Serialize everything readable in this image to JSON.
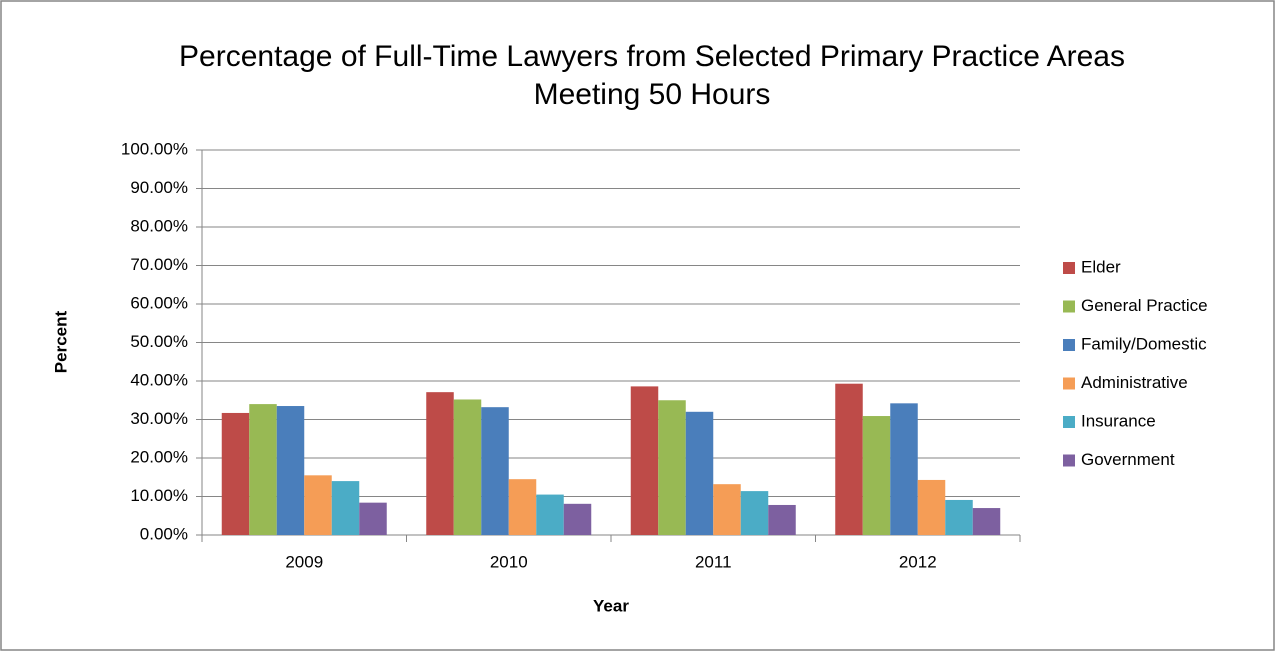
{
  "chart_data": {
    "type": "bar",
    "title": "Percentage of Full-Time Lawyers from Selected Primary Practice Areas Meeting 50 Hours",
    "x_label": "Year",
    "y_label": "Percent",
    "categories": [
      "2009",
      "2010",
      "2011",
      "2012"
    ],
    "series": [
      {
        "name": "Elder",
        "color": "#be4b48",
        "values": [
          31.7,
          37.1,
          38.6,
          39.3
        ]
      },
      {
        "name": "General Practice",
        "color": "#98b954",
        "values": [
          34.0,
          35.2,
          35.0,
          30.9
        ]
      },
      {
        "name": "Family/Domestic",
        "color": "#4a7ebb",
        "values": [
          33.5,
          33.2,
          32.0,
          34.2
        ]
      },
      {
        "name": "Administrative",
        "color": "#f59d56",
        "values": [
          15.5,
          14.5,
          13.2,
          14.3
        ]
      },
      {
        "name": "Insurance",
        "color": "#4bacc6",
        "values": [
          14.0,
          10.5,
          11.4,
          9.1
        ]
      },
      {
        "name": "Government",
        "color": "#7d60a0",
        "values": [
          8.4,
          8.1,
          7.8,
          7.0
        ]
      }
    ],
    "ylim": [
      0,
      100
    ],
    "yticks": [
      {
        "value": 0,
        "label": "0.00%"
      },
      {
        "value": 10,
        "label": "10.00%"
      },
      {
        "value": 20,
        "label": "20.00%"
      },
      {
        "value": 30,
        "label": "30.00%"
      },
      {
        "value": 40,
        "label": "40.00%"
      },
      {
        "value": 50,
        "label": "50.00%"
      },
      {
        "value": 60,
        "label": "60.00%"
      },
      {
        "value": 70,
        "label": "70.00%"
      },
      {
        "value": 80,
        "label": "80.00%"
      },
      {
        "value": 90,
        "label": "90.00%"
      },
      {
        "value": 100,
        "label": "100.00%"
      }
    ],
    "grid": true,
    "legend": "right"
  }
}
